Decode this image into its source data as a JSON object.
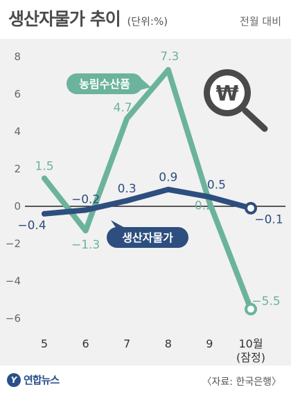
{
  "header": {
    "title": "생산자물가 추이",
    "unit": "(단위:%)",
    "subtitle": "전월 대비"
  },
  "footer": {
    "logo_text": "연합뉴스",
    "logo_mark": "Y",
    "source": "〈자료: 한국은행〉"
  },
  "colors": {
    "agri": "#6bb39c",
    "ppi": "#2d4e7e",
    "axis": "#222222",
    "panel": "#f1f1f1"
  },
  "icon": "won-magnifier-icon",
  "chart_data": {
    "type": "line",
    "title": "생산자물가 추이",
    "categories": [
      "5",
      "6",
      "7",
      "8",
      "9",
      "10월 (잠정)"
    ],
    "category_labels": [
      [
        "5"
      ],
      [
        "6"
      ],
      [
        "7"
      ],
      [
        "8"
      ],
      [
        "9"
      ],
      [
        "10월",
        "(잠정)"
      ]
    ],
    "series": [
      {
        "name": "농림수산품",
        "values": [
          1.5,
          -1.3,
          4.7,
          7.3,
          0.2,
          -5.5
        ],
        "labels": [
          "1.5",
          "-1.3",
          "4.7",
          "7.3",
          "0.2",
          "-5.5"
        ],
        "color": "#6bb39c"
      },
      {
        "name": "생산자물가",
        "values": [
          -0.4,
          -0.2,
          0.3,
          0.9,
          0.5,
          -0.1
        ],
        "labels": [
          "-0.4",
          "-0.2",
          "0.3",
          "0.9",
          "0.5",
          "-0.1"
        ],
        "color": "#2d4e7e"
      }
    ],
    "yticks": [
      8,
      6,
      4,
      2,
      0,
      -2,
      -4,
      -6
    ],
    "ytick_labels": [
      "8",
      "6",
      "4",
      "2",
      "0",
      "-2",
      "-4",
      "-6"
    ],
    "ylim": [
      -6,
      8
    ],
    "grid": false,
    "legend": "inline labels on lines"
  }
}
